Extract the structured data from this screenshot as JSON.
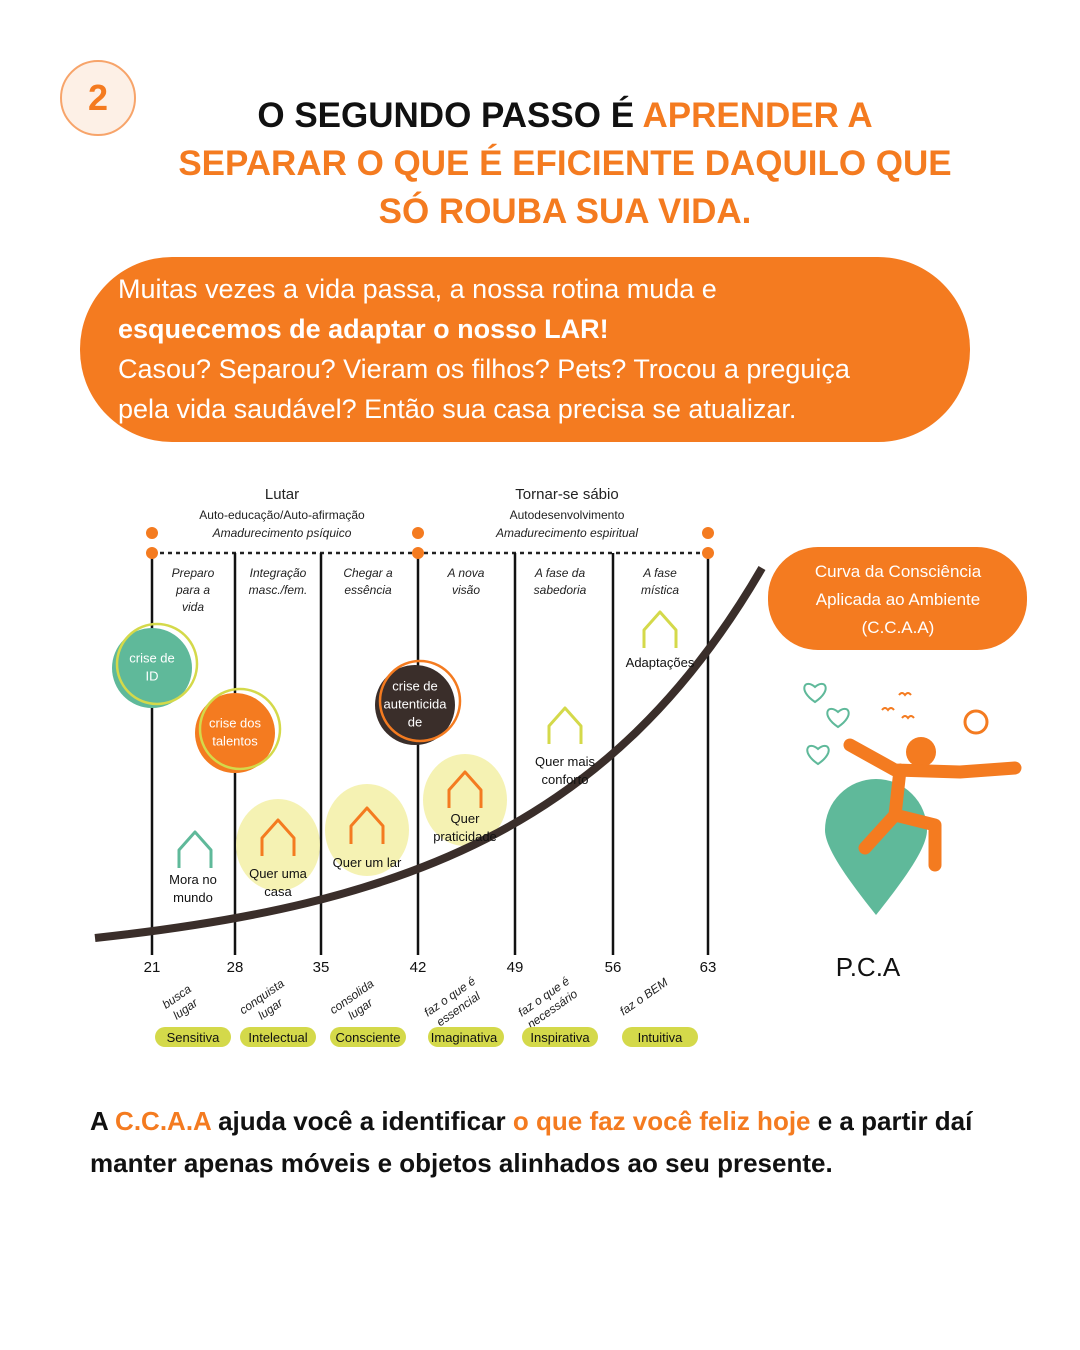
{
  "step_number": "2",
  "title": {
    "lead": "O SEGUNDO PASSO É",
    "highlight": [
      "APRENDER A",
      "SEPARAR O QUE É EFICIENTE DAQUILO QUE",
      "SÓ ROUBA SUA VIDA."
    ]
  },
  "intro": {
    "line1": "Muitas vezes a vida passa, a nossa rotina muda e",
    "bold": "esquecemos de adaptar o nosso LAR!",
    "line3": "Casou? Separou? Vieram os filhos? Pets? Trocou a preguiça",
    "line4": "pela vida saudável? Então sua casa precisa se atualizar."
  },
  "diagram": {
    "phases": [
      {
        "title": "Lutar",
        "subtitle": "Auto-educação/Auto-afirmação",
        "note": "Amadurecimento psíquico"
      },
      {
        "title": "Tornar-se sábio",
        "subtitle": "Autodesenvolvimento",
        "note": "Amadurecimento espiritual"
      }
    ],
    "periods": [
      [
        "Preparo",
        "para a",
        "vida"
      ],
      [
        "Integração",
        "masc./fem."
      ],
      [
        "Chegar a",
        "essência"
      ],
      [
        "A nova",
        "visão"
      ],
      [
        "A fase da",
        "sabedoria"
      ],
      [
        "A fase",
        "mística"
      ]
    ],
    "ages": [
      "21",
      "28",
      "35",
      "42",
      "49",
      "56",
      "63"
    ],
    "actions": [
      [
        "busca",
        "lugar"
      ],
      [
        "conquista",
        "lugar"
      ],
      [
        "consolida",
        "lugar"
      ],
      [
        "faz o que é",
        "essencial"
      ],
      [
        "faz o que é",
        "necessário"
      ],
      [
        "faz o BEM"
      ]
    ],
    "stages": [
      "Sensitiva",
      "Intelectual",
      "Consciente",
      "Imaginativa",
      "Inspirativa",
      "Intuitiva"
    ],
    "crises": [
      [
        "crise de",
        "ID"
      ],
      [
        "crise dos",
        "talentos"
      ],
      [
        "crise de",
        "autenticida",
        "de"
      ]
    ],
    "needs": [
      [
        "Mora no",
        "mundo"
      ],
      [
        "Quer uma",
        "casa"
      ],
      [
        "Quer um lar"
      ],
      [
        "Quer",
        "praticidade"
      ],
      [
        "Quer mais",
        "conforto"
      ],
      [
        "Adaptações"
      ]
    ],
    "curve_label": [
      "Curva da Consciência",
      "Aplicada ao Ambiente",
      "(C.C.A.A)"
    ],
    "figure_label": "P.C.A"
  },
  "footer": {
    "part1": "A",
    "part2": "C.C.A.A",
    "part3": "ajuda você a identificar",
    "part4": "o que faz você feliz hoje",
    "part5": "e a partir daí manter apenas móveis e objetos alinhados ao seu presente."
  }
}
